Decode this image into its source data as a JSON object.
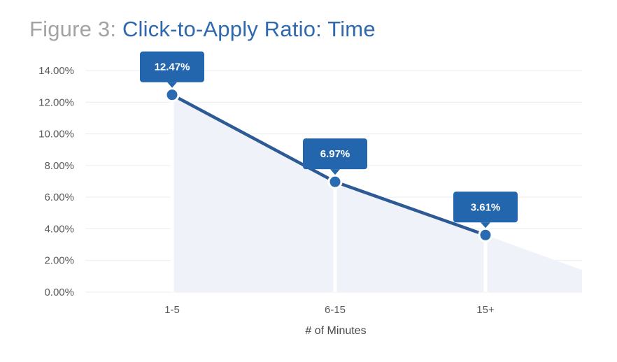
{
  "title": {
    "prefix": "Figure 3:",
    "main": "Click-to-Apply Ratio: Time"
  },
  "colors": {
    "line": "#2d5a95",
    "point": "#2a6ab1",
    "label_bg": "#2466ad",
    "area_fill": "#eff3f9",
    "grid": "#ececec",
    "title_prefix": "#a3a3a3",
    "title_main": "#2f68ad"
  },
  "chart_data": {
    "type": "line",
    "categories": [
      "1-5",
      "6-15",
      "15+"
    ],
    "series": [
      {
        "values": [
          12.47,
          6.97,
          3.61
        ],
        "data_labels": [
          "12.47%",
          "6.97%",
          "3.61%"
        ]
      }
    ],
    "y_ticks": [
      "0.00%",
      "2.00%",
      "4.00%",
      "6.00%",
      "8.00%",
      "10.00%",
      "12.00%",
      "14.00%"
    ],
    "ylim": [
      0,
      14
    ],
    "xlabel": "# of Minutes",
    "ylabel": "",
    "grid": true,
    "trend_area_end_value": 1.4
  }
}
